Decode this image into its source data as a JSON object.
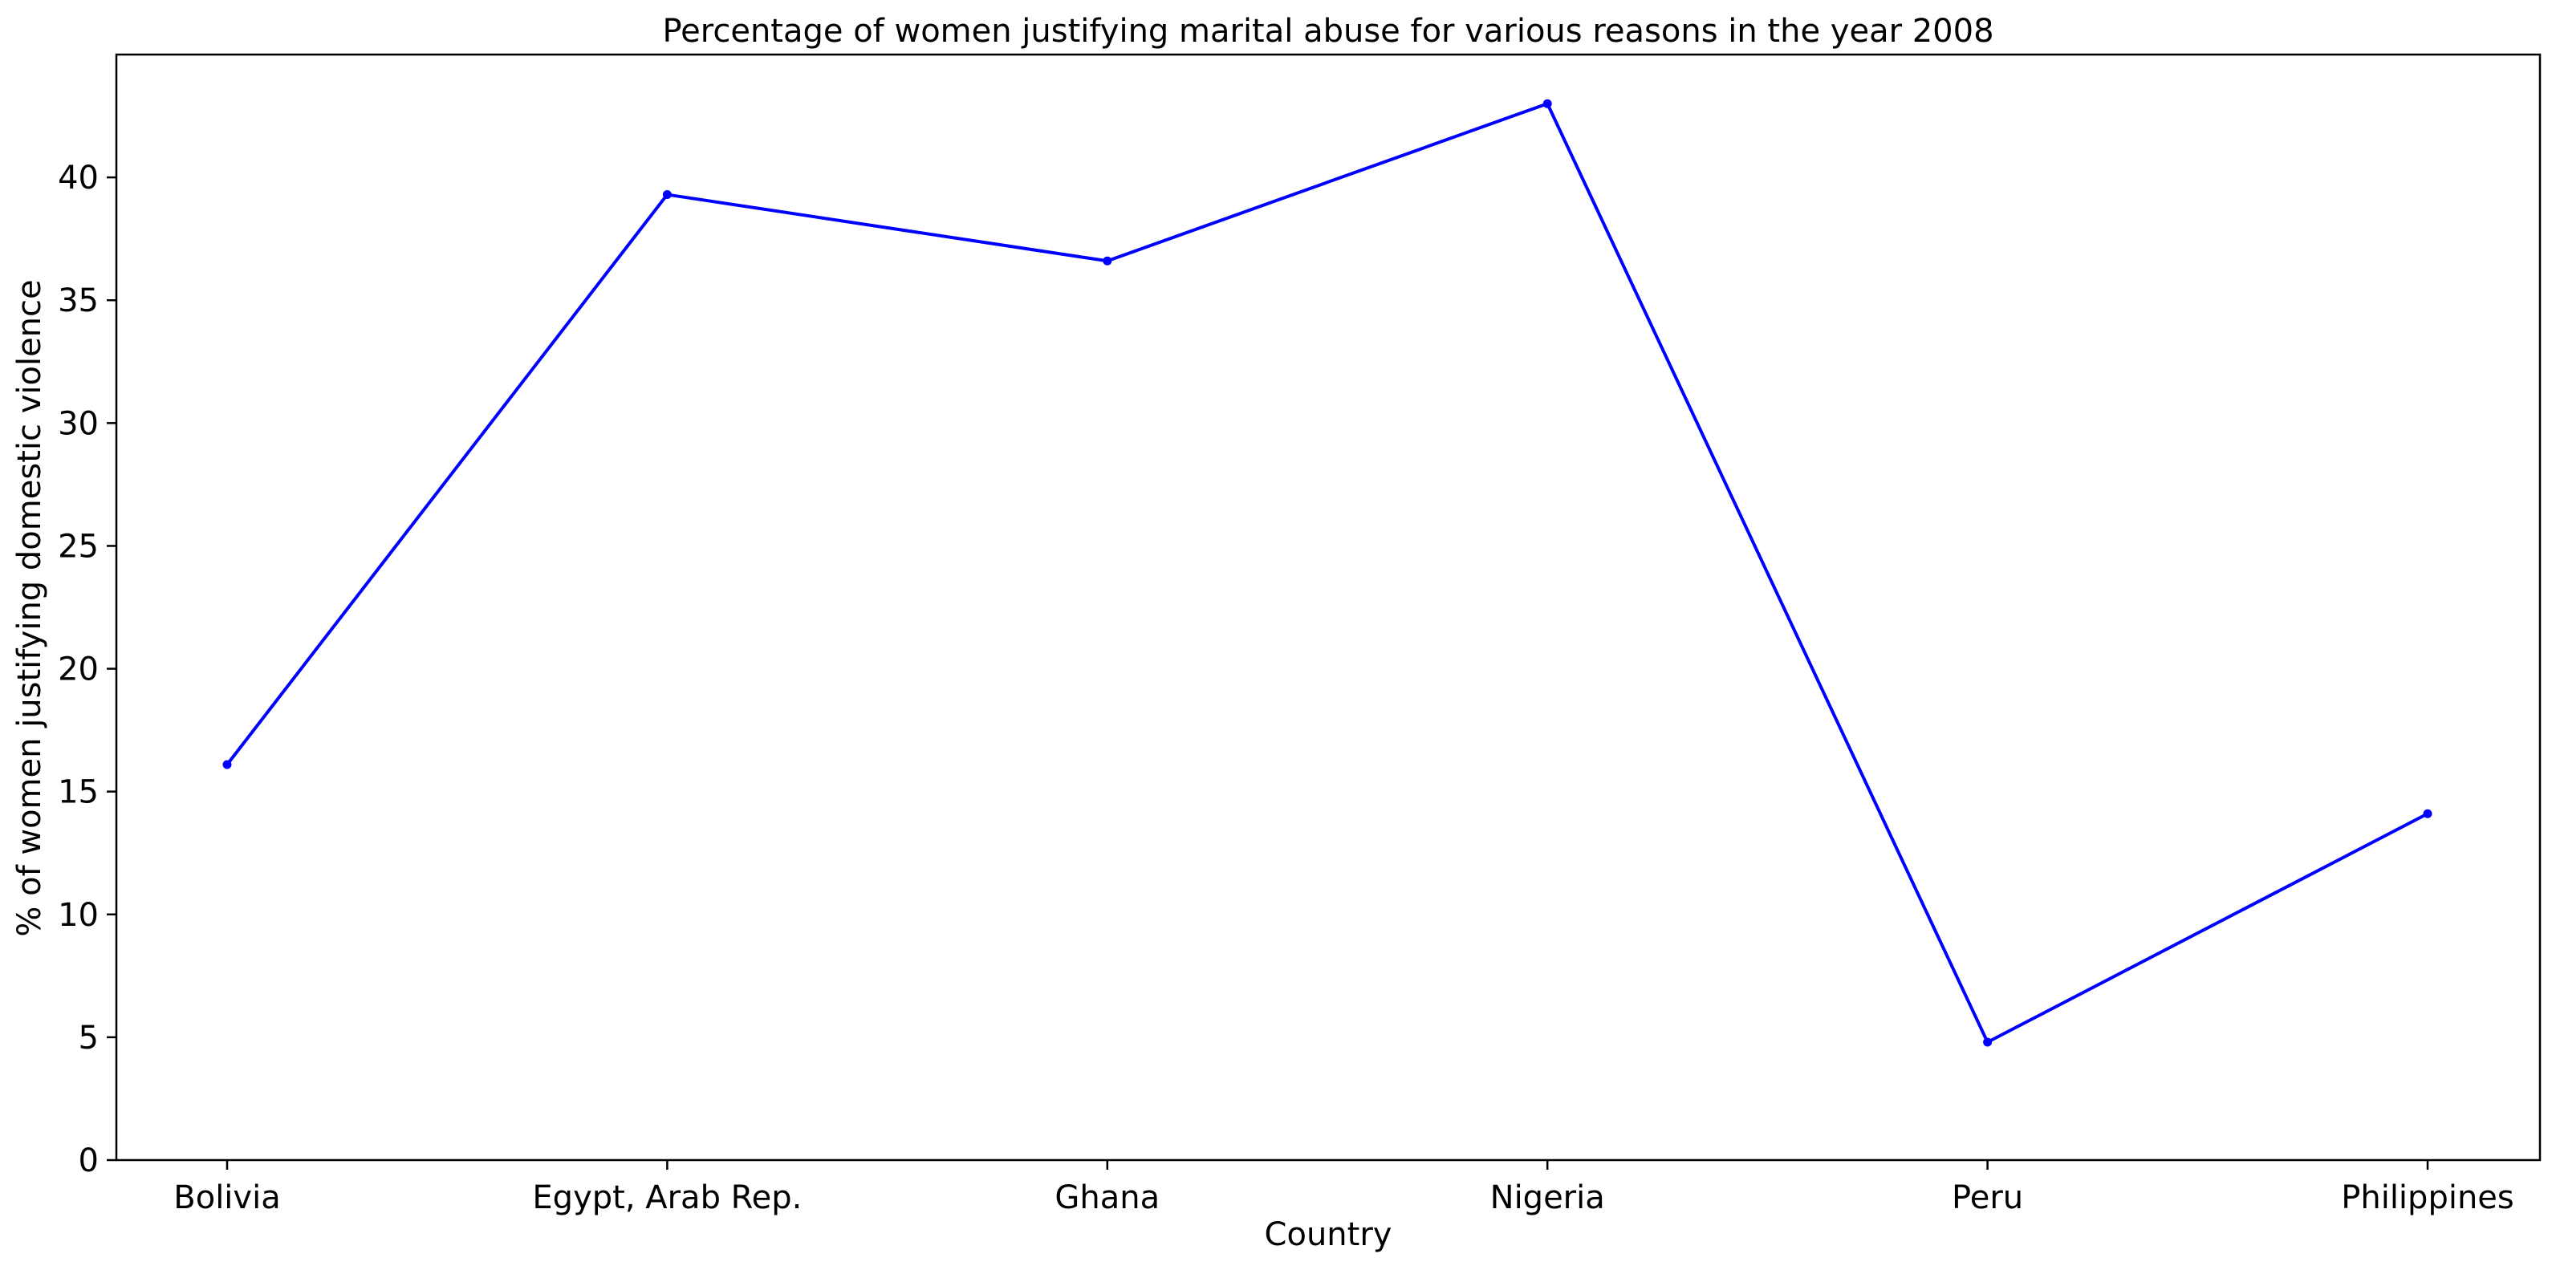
{
  "chart_data": {
    "type": "line",
    "title": "Percentage of women justifying marital abuse for various reasons in the year 2008",
    "xlabel": "Country",
    "ylabel": "% of women justifying domestic violence",
    "categories": [
      "Bolivia",
      "Egypt, Arab Rep.",
      "Ghana",
      "Nigeria",
      "Peru",
      "Philippines"
    ],
    "series": [
      {
        "values": [
          16.1,
          39.3,
          36.6,
          43.0,
          4.8,
          14.1
        ],
        "color": "#0000ff",
        "marker": "point"
      }
    ],
    "ylim": [
      0,
      45
    ],
    "yticks": [
      0,
      5,
      10,
      15,
      20,
      25,
      30,
      35,
      40
    ],
    "grid": false,
    "legend": "none"
  }
}
